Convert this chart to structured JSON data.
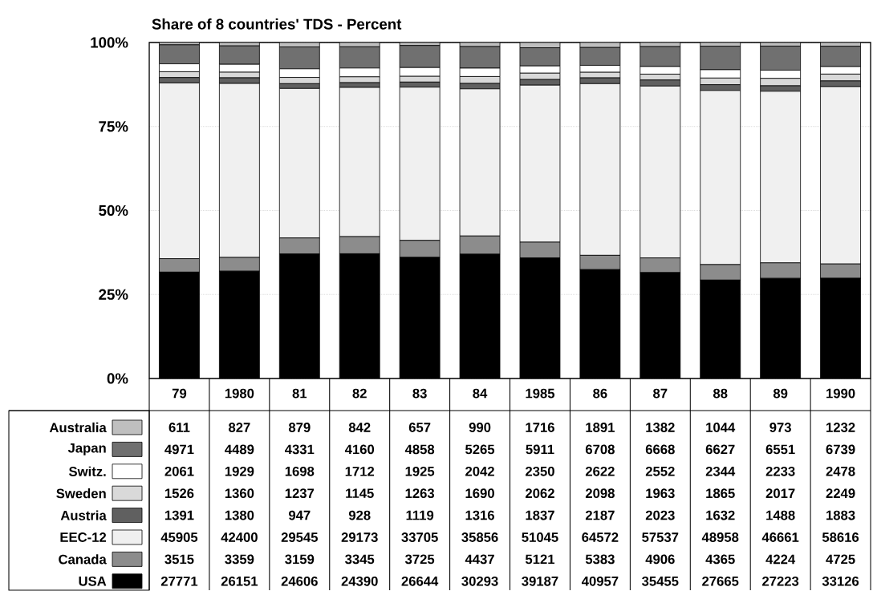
{
  "chart_data": [
    {
      "type": "bar",
      "title": "Share of 8 countries' TDS - Percent",
      "stacked": true,
      "grid": "y",
      "categories": [
        "79",
        "1980",
        "81",
        "82",
        "83",
        "84",
        "1985",
        "86",
        "87",
        "88",
        "89",
        "1990"
      ],
      "ylim": [
        0,
        100
      ],
      "yticks": [
        {
          "value": 0,
          "label": "0%"
        },
        {
          "value": 25,
          "label": "25%"
        },
        {
          "value": 50,
          "label": "50%"
        },
        {
          "value": 75,
          "label": "75%"
        },
        {
          "value": 100,
          "label": "100%"
        }
      ],
      "legend": "bottom",
      "series": [
        {
          "name": "USA",
          "color": "#000000",
          "values": [
            31.65,
            31.93,
            37.06,
            37.13,
            36.06,
            36.99,
            35.88,
            32.4,
            31.52,
            29.28,
            29.79,
            29.83
          ]
        },
        {
          "name": "Canada",
          "color": "#8c8c8c",
          "values": [
            4.01,
            4.1,
            4.76,
            5.09,
            5.04,
            5.42,
            4.69,
            4.26,
            4.36,
            4.62,
            4.62,
            4.25
          ]
        },
        {
          "name": "EEC-12",
          "color": "#f0f0f0",
          "values": [
            52.31,
            51.77,
            44.49,
            44.41,
            45.61,
            43.79,
            46.73,
            51.08,
            51.15,
            51.81,
            51.07,
            52.78
          ]
        },
        {
          "name": "Austria",
          "color": "#606060",
          "values": [
            1.59,
            1.69,
            1.43,
            1.41,
            1.51,
            1.61,
            1.68,
            1.73,
            1.8,
            1.73,
            1.63,
            1.7
          ]
        },
        {
          "name": "Sweden",
          "color": "#d9d9d9",
          "values": [
            1.74,
            1.66,
            1.86,
            1.74,
            1.71,
            2.06,
            1.89,
            1.66,
            1.75,
            1.97,
            2.21,
            2.03
          ]
        },
        {
          "name": "Switz.",
          "color": "#ffffff",
          "values": [
            2.35,
            2.36,
            2.56,
            2.61,
            2.61,
            2.49,
            2.15,
            2.07,
            2.27,
            2.48,
            2.44,
            2.23
          ]
        },
        {
          "name": "Japan",
          "color": "#707070",
          "values": [
            5.66,
            5.48,
            6.52,
            6.33,
            6.57,
            6.43,
            5.41,
            5.31,
            5.93,
            7.01,
            7.17,
            6.07
          ]
        },
        {
          "name": "Australia",
          "color": "#bfbfbf",
          "values": [
            0.7,
            1.01,
            1.32,
            1.28,
            0.89,
            1.21,
            1.57,
            1.5,
            1.23,
            1.1,
            1.06,
            1.11
          ]
        }
      ]
    },
    {
      "type": "other",
      "annotations": [
        "611",
        "827",
        "879",
        "842",
        "657",
        "990",
        "1716",
        "1891",
        "1382",
        "1044",
        "973",
        "1232",
        "4971",
        "4489",
        "4331",
        "4160",
        "4858",
        "5265",
        "5911",
        "6708",
        "6668",
        "6627",
        "6551",
        "6739",
        "2061",
        "1929",
        "1698",
        "1712",
        "1925",
        "2042",
        "2350",
        "2622",
        "2552",
        "2344",
        "2233",
        "2478",
        "1526",
        "1360",
        "1237",
        "1145",
        "1263",
        "1690",
        "2062",
        "2098",
        "1963",
        "1865",
        "2017",
        "2249",
        "1391",
        "1380",
        "947",
        "928",
        "1119",
        "1316",
        "1837",
        "2187",
        "2023",
        "1632",
        "1488",
        "1883",
        "45905",
        "42400",
        "29545",
        "29173",
        "33705",
        "35856",
        "51045",
        "64572",
        "57537",
        "48958",
        "46661",
        "58616",
        "3515",
        "3359",
        "3159",
        "3345",
        "3725",
        "4437",
        "5121",
        "5383",
        "4906",
        "4365",
        "4224",
        "4725",
        "27771",
        "26151",
        "24606",
        "24390",
        "26644",
        "30293",
        "39187",
        "40957",
        "35455",
        "27665",
        "27223",
        "33126"
      ]
    }
  ]
}
